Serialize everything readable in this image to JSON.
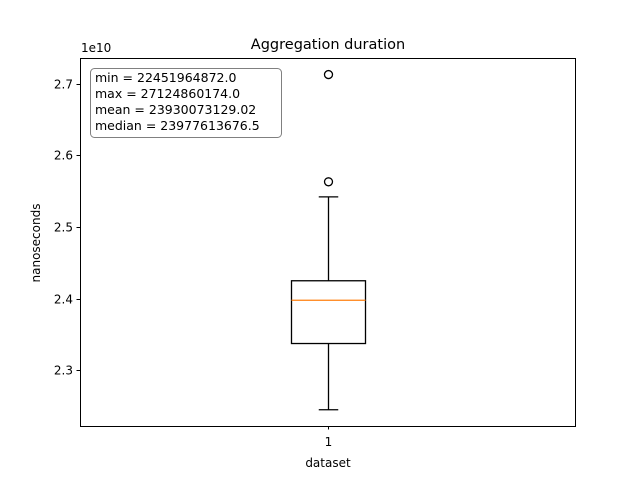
{
  "chart_data": {
    "type": "box",
    "title": "Aggregation duration",
    "xlabel": "dataset",
    "ylabel": "nanoseconds",
    "y_offset_label": "1e10",
    "y_scale": 10000000000,
    "categories": [
      "1"
    ],
    "ylim": [
      2.2225,
      2.7356
    ],
    "yticks": [
      2.3,
      2.4,
      2.5,
      2.6,
      2.7
    ],
    "ytick_labels": [
      "2.3",
      "2.4",
      "2.5",
      "2.6",
      "2.7"
    ],
    "boxes": [
      {
        "category": "1",
        "whisker_low": 2.2452,
        "q1": 2.3375,
        "median": 2.3978,
        "q3": 2.425,
        "whisker_high": 2.542,
        "outliers": [
          2.563,
          2.7125
        ]
      }
    ],
    "stats_lines": [
      "min = 22451964872.0",
      "max = 27124860174.0",
      "mean = 23930073129.02",
      "median = 23977613676.5"
    ],
    "colors": {
      "box": "#000000",
      "median": "#ff7f0e",
      "stats_border": "#808080"
    }
  }
}
